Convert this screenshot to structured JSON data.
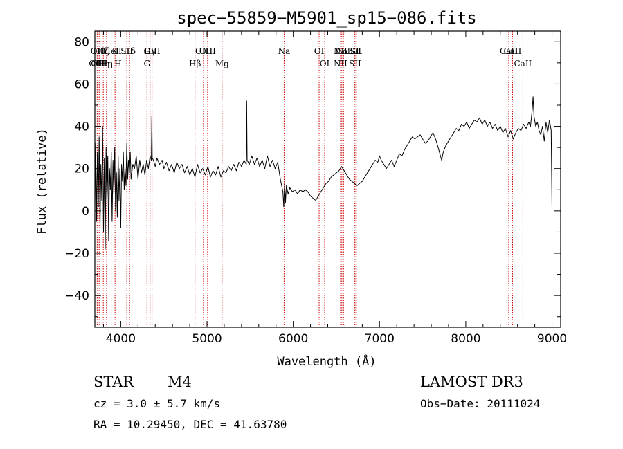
{
  "chart_data": {
    "type": "line",
    "title": "spec−55859−M5901_sp15−086.fits",
    "xlabel": "Wavelength (Å)",
    "ylabel": "Flux (relative)",
    "xlim": [
      3700,
      9100
    ],
    "ylim": [
      -55,
      85
    ],
    "xticks": [
      {
        "v": 4000,
        "label": "4000"
      },
      {
        "v": 5000,
        "label": "5000"
      },
      {
        "v": 6000,
        "label": "6000"
      },
      {
        "v": 7000,
        "label": "7000"
      },
      {
        "v": 8000,
        "label": "8000"
      },
      {
        "v": 9000,
        "label": "9000"
      }
    ],
    "yticks": [
      {
        "v": -40,
        "label": "−40"
      },
      {
        "v": -20,
        "label": "−20"
      },
      {
        "v": 0,
        "label": "0"
      },
      {
        "v": 20,
        "label": "20"
      },
      {
        "v": 40,
        "label": "40"
      },
      {
        "v": 60,
        "label": "60"
      },
      {
        "v": 80,
        "label": "80"
      }
    ],
    "series": [
      {
        "name": "flux",
        "color": "#000000",
        "points": [
          [
            3700,
            0
          ],
          [
            3710,
            32
          ],
          [
            3720,
            -5
          ],
          [
            3730,
            28
          ],
          [
            3740,
            2
          ],
          [
            3750,
            35
          ],
          [
            3760,
            -8
          ],
          [
            3770,
            22
          ],
          [
            3780,
            5
          ],
          [
            3790,
            40
          ],
          [
            3800,
            -10
          ],
          [
            3810,
            25
          ],
          [
            3820,
            -18
          ],
          [
            3830,
            30
          ],
          [
            3840,
            4
          ],
          [
            3850,
            26
          ],
          [
            3860,
            -14
          ],
          [
            3870,
            20
          ],
          [
            3880,
            10
          ],
          [
            3890,
            28
          ],
          [
            3900,
            -5
          ],
          [
            3910,
            24
          ],
          [
            3920,
            8
          ],
          [
            3930,
            30
          ],
          [
            3940,
            0
          ],
          [
            3950,
            18
          ],
          [
            3960,
            -3
          ],
          [
            3970,
            26
          ],
          [
            3980,
            5
          ],
          [
            3990,
            20
          ],
          [
            4000,
            -8
          ],
          [
            4010,
            22
          ],
          [
            4020,
            14
          ],
          [
            4030,
            28
          ],
          [
            4040,
            10
          ],
          [
            4050,
            20
          ],
          [
            4060,
            12
          ],
          [
            4070,
            32
          ],
          [
            4080,
            15
          ],
          [
            4090,
            24
          ],
          [
            4100,
            18
          ],
          [
            4110,
            28
          ],
          [
            4120,
            15
          ],
          [
            4140,
            22
          ],
          [
            4160,
            20
          ],
          [
            4180,
            26
          ],
          [
            4200,
            15
          ],
          [
            4220,
            24
          ],
          [
            4240,
            18
          ],
          [
            4260,
            22
          ],
          [
            4280,
            17
          ],
          [
            4300,
            24
          ],
          [
            4320,
            20
          ],
          [
            4340,
            26
          ],
          [
            4355,
            24
          ],
          [
            4360,
            45
          ],
          [
            4365,
            25
          ],
          [
            4380,
            24
          ],
          [
            4400,
            21
          ],
          [
            4420,
            25
          ],
          [
            4450,
            22
          ],
          [
            4480,
            24
          ],
          [
            4500,
            20
          ],
          [
            4530,
            23
          ],
          [
            4560,
            19
          ],
          [
            4590,
            22
          ],
          [
            4620,
            18
          ],
          [
            4650,
            23
          ],
          [
            4680,
            20
          ],
          [
            4710,
            22
          ],
          [
            4740,
            18
          ],
          [
            4770,
            21
          ],
          [
            4800,
            17
          ],
          [
            4830,
            20
          ],
          [
            4860,
            16
          ],
          [
            4890,
            22
          ],
          [
            4920,
            18
          ],
          [
            4950,
            20
          ],
          [
            4980,
            17
          ],
          [
            5010,
            21
          ],
          [
            5040,
            16
          ],
          [
            5070,
            19
          ],
          [
            5100,
            17
          ],
          [
            5130,
            21
          ],
          [
            5160,
            16
          ],
          [
            5190,
            19
          ],
          [
            5220,
            18
          ],
          [
            5250,
            21
          ],
          [
            5280,
            19
          ],
          [
            5310,
            22
          ],
          [
            5340,
            19
          ],
          [
            5370,
            23
          ],
          [
            5400,
            21
          ],
          [
            5430,
            24
          ],
          [
            5455,
            22
          ],
          [
            5460,
            52
          ],
          [
            5465,
            24
          ],
          [
            5490,
            22
          ],
          [
            5520,
            26
          ],
          [
            5550,
            22
          ],
          [
            5580,
            25
          ],
          [
            5610,
            21
          ],
          [
            5640,
            24
          ],
          [
            5670,
            20
          ],
          [
            5700,
            26
          ],
          [
            5730,
            21
          ],
          [
            5760,
            24
          ],
          [
            5790,
            20
          ],
          [
            5820,
            23
          ],
          [
            5850,
            15
          ],
          [
            5880,
            9
          ],
          [
            5890,
            2
          ],
          [
            5900,
            13
          ],
          [
            5910,
            4
          ],
          [
            5920,
            12
          ],
          [
            5940,
            8
          ],
          [
            5960,
            11
          ],
          [
            5990,
            9
          ],
          [
            6020,
            10
          ],
          [
            6050,
            8
          ],
          [
            6080,
            10
          ],
          [
            6110,
            9
          ],
          [
            6140,
            10
          ],
          [
            6170,
            9
          ],
          [
            6200,
            7
          ],
          [
            6230,
            6
          ],
          [
            6260,
            5
          ],
          [
            6290,
            7
          ],
          [
            6320,
            9
          ],
          [
            6350,
            11
          ],
          [
            6380,
            13
          ],
          [
            6410,
            14
          ],
          [
            6440,
            16
          ],
          [
            6470,
            17
          ],
          [
            6500,
            18
          ],
          [
            6530,
            19
          ],
          [
            6560,
            21
          ],
          [
            6590,
            19
          ],
          [
            6620,
            17
          ],
          [
            6650,
            15
          ],
          [
            6680,
            14
          ],
          [
            6710,
            13
          ],
          [
            6740,
            12
          ],
          [
            6770,
            13
          ],
          [
            6800,
            14
          ],
          [
            6830,
            16
          ],
          [
            6860,
            18
          ],
          [
            6890,
            20
          ],
          [
            6920,
            22
          ],
          [
            6950,
            24
          ],
          [
            6980,
            23
          ],
          [
            7000,
            26
          ],
          [
            7020,
            24
          ],
          [
            7050,
            22
          ],
          [
            7080,
            20
          ],
          [
            7110,
            22
          ],
          [
            7140,
            24
          ],
          [
            7170,
            21
          ],
          [
            7200,
            24
          ],
          [
            7230,
            27
          ],
          [
            7260,
            26
          ],
          [
            7290,
            29
          ],
          [
            7320,
            31
          ],
          [
            7350,
            33
          ],
          [
            7380,
            35
          ],
          [
            7410,
            34
          ],
          [
            7440,
            35
          ],
          [
            7470,
            36
          ],
          [
            7500,
            34
          ],
          [
            7530,
            32
          ],
          [
            7560,
            33
          ],
          [
            7590,
            35
          ],
          [
            7620,
            37
          ],
          [
            7650,
            34
          ],
          [
            7680,
            30
          ],
          [
            7700,
            27
          ],
          [
            7720,
            24
          ],
          [
            7740,
            28
          ],
          [
            7770,
            31
          ],
          [
            7800,
            33
          ],
          [
            7830,
            35
          ],
          [
            7860,
            37
          ],
          [
            7890,
            39
          ],
          [
            7920,
            38
          ],
          [
            7950,
            41
          ],
          [
            7980,
            40
          ],
          [
            8010,
            42
          ],
          [
            8040,
            39
          ],
          [
            8070,
            41
          ],
          [
            8100,
            43
          ],
          [
            8130,
            42
          ],
          [
            8160,
            44
          ],
          [
            8190,
            41
          ],
          [
            8220,
            43
          ],
          [
            8250,
            40
          ],
          [
            8280,
            42
          ],
          [
            8310,
            39
          ],
          [
            8340,
            41
          ],
          [
            8370,
            38
          ],
          [
            8400,
            40
          ],
          [
            8430,
            37
          ],
          [
            8460,
            39
          ],
          [
            8490,
            35
          ],
          [
            8520,
            38
          ],
          [
            8550,
            34
          ],
          [
            8580,
            37
          ],
          [
            8610,
            39
          ],
          [
            8640,
            38
          ],
          [
            8670,
            41
          ],
          [
            8700,
            39
          ],
          [
            8730,
            42
          ],
          [
            8750,
            40
          ],
          [
            8770,
            48
          ],
          [
            8780,
            54
          ],
          [
            8790,
            45
          ],
          [
            8810,
            40
          ],
          [
            8830,
            42
          ],
          [
            8850,
            38
          ],
          [
            8870,
            36
          ],
          [
            8890,
            40
          ],
          [
            8910,
            33
          ],
          [
            8930,
            42
          ],
          [
            8950,
            37
          ],
          [
            8970,
            43
          ],
          [
            8990,
            38
          ],
          [
            9000,
            1
          ]
        ]
      }
    ],
    "lines": [
      {
        "w": 3727,
        "upper": "OII",
        "lower": "OIII"
      },
      {
        "w": 3750,
        "upper": "Hθ",
        "lower": "OIII"
      },
      {
        "w": 3798,
        "upper": "Hζ",
        "lower": "Hη"
      },
      {
        "w": 3835,
        "upper": "",
        "lower": "Hη"
      },
      {
        "w": 3889,
        "upper": "HeI",
        "lower": ""
      },
      {
        "w": 3934,
        "upper": "K",
        "lower": ""
      },
      {
        "w": 3969,
        "upper": "H",
        "lower": "H"
      },
      {
        "w": 4070,
        "upper": "SII",
        "lower": ""
      },
      {
        "w": 4102,
        "upper": "Hδ",
        "lower": ""
      },
      {
        "w": 4304,
        "upper": "G",
        "lower": "G"
      },
      {
        "w": 4340,
        "upper": "Hγ",
        "lower": ""
      },
      {
        "w": 4363,
        "upper": "OIII",
        "lower": ""
      },
      {
        "w": 4861,
        "upper": "",
        "lower": "Hβ"
      },
      {
        "w": 4959,
        "upper": "OIII",
        "lower": ""
      },
      {
        "w": 5007,
        "upper": "OIII",
        "lower": ""
      },
      {
        "w": 5175,
        "upper": "",
        "lower": "Mg"
      },
      {
        "w": 5894,
        "upper": "Na",
        "lower": ""
      },
      {
        "w": 6300,
        "upper": "OI",
        "lower": ""
      },
      {
        "w": 6364,
        "upper": "",
        "lower": "OI"
      },
      {
        "w": 6548,
        "upper": "NII",
        "lower": "NII"
      },
      {
        "w": 6563,
        "upper": "Hα",
        "lower": ""
      },
      {
        "w": 6583,
        "upper": "NII",
        "lower": ""
      },
      {
        "w": 6707,
        "upper": "Li",
        "lower": ""
      },
      {
        "w": 6716,
        "upper": "SII",
        "lower": "SII"
      },
      {
        "w": 6731,
        "upper": "SII",
        "lower": ""
      },
      {
        "w": 8498,
        "upper": "CaII",
        "lower": ""
      },
      {
        "w": 8542,
        "upper": "CaII",
        "lower": ""
      },
      {
        "w": 8662,
        "upper": "",
        "lower": "CaII"
      }
    ],
    "line_color": "#cc0000"
  },
  "info": {
    "class": "STAR",
    "subclass": "M4",
    "survey": "LAMOST DR3",
    "cz": "cz = 3.0 ± 5.7 km/s",
    "obs_date": "Obs−Date: 20111024",
    "coords": "RA =  10.29450, DEC =  41.63780"
  }
}
